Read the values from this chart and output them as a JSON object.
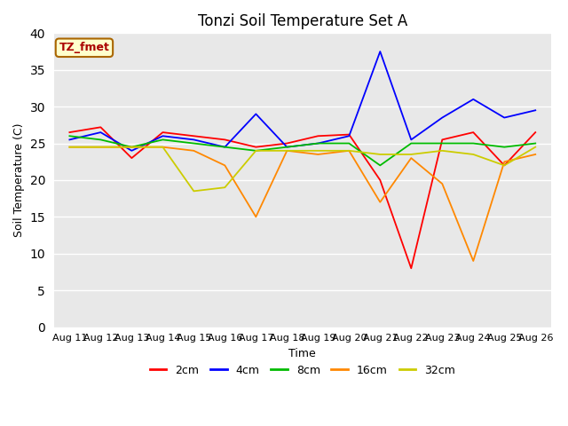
{
  "title": "Tonzi Soil Temperature Set A",
  "xlabel": "Time",
  "ylabel": "Soil Temperature (C)",
  "annotation": "TZ_fmet",
  "ylim": [
    0,
    40
  ],
  "yticks": [
    0,
    5,
    10,
    15,
    20,
    25,
    30,
    35,
    40
  ],
  "x_labels": [
    "Aug 11",
    "Aug 12",
    "Aug 13",
    "Aug 14",
    "Aug 15",
    "Aug 16",
    "Aug 17",
    "Aug 18",
    "Aug 19",
    "Aug 20",
    "Aug 21",
    "Aug 22",
    "Aug 23",
    "Aug 24",
    "Aug 25",
    "Aug 26"
  ],
  "series": {
    "2cm": {
      "color": "#FF0000",
      "data": [
        26.5,
        27.2,
        23.0,
        26.5,
        26.0,
        25.5,
        24.5,
        25.0,
        26.0,
        26.2,
        20.0,
        8.0,
        25.5,
        26.5,
        22.0,
        26.5
      ]
    },
    "4cm": {
      "color": "#0000FF",
      "data": [
        25.5,
        26.5,
        24.0,
        26.0,
        25.5,
        24.5,
        29.0,
        24.5,
        25.0,
        26.0,
        37.5,
        25.5,
        28.5,
        31.0,
        28.5,
        29.5
      ]
    },
    "8cm": {
      "color": "#00BB00",
      "data": [
        26.0,
        25.5,
        24.5,
        25.5,
        25.0,
        24.5,
        24.0,
        24.5,
        25.0,
        25.0,
        22.0,
        25.0,
        25.0,
        25.0,
        24.5,
        25.0
      ]
    },
    "16cm": {
      "color": "#FF8800",
      "data": [
        24.5,
        24.5,
        24.5,
        24.5,
        24.0,
        22.0,
        15.0,
        24.0,
        23.5,
        24.0,
        17.0,
        23.0,
        19.5,
        9.0,
        22.5,
        23.5
      ]
    },
    "32cm": {
      "color": "#CCCC00",
      "data": [
        24.5,
        24.5,
        24.5,
        24.5,
        18.5,
        19.0,
        24.0,
        24.0,
        24.0,
        24.0,
        23.5,
        23.5,
        24.0,
        23.5,
        22.0,
        24.5
      ]
    }
  },
  "legend_labels": [
    "2cm",
    "4cm",
    "8cm",
    "16cm",
    "32cm"
  ],
  "legend_colors": [
    "#FF0000",
    "#0000FF",
    "#00BB00",
    "#FF8800",
    "#CCCC00"
  ],
  "bg_color": "#E8E8E8",
  "plot_bg": "#E8E8E8",
  "title_fontsize": 12,
  "axis_fontsize": 9,
  "tick_fontsize": 8,
  "linewidth": 1.3,
  "annotation_color": "#AA0000",
  "annotation_bg": "#FFFFCC",
  "annotation_edge": "#AA6600"
}
